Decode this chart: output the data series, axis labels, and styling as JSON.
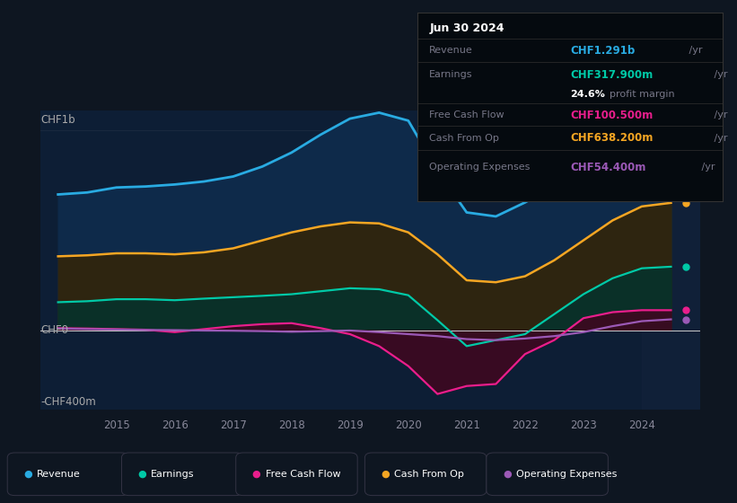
{
  "background_color": "#0e1621",
  "plot_bg_color": "#0d1e35",
  "ylabel_top": "CHF1b",
  "ylabel_mid": "CHF0",
  "ylabel_bot": "-CHF400m",
  "ylim": [
    -400,
    1100
  ],
  "xlim": [
    2013.7,
    2025.0
  ],
  "years": [
    2014.0,
    2014.5,
    2015.0,
    2015.5,
    2016.0,
    2016.5,
    2017.0,
    2017.5,
    2018.0,
    2018.5,
    2019.0,
    2019.5,
    2020.0,
    2020.5,
    2021.0,
    2021.5,
    2022.0,
    2022.5,
    2023.0,
    2023.5,
    2024.0,
    2024.5
  ],
  "revenue": [
    680,
    690,
    715,
    720,
    730,
    745,
    770,
    820,
    890,
    980,
    1060,
    1090,
    1050,
    800,
    590,
    570,
    640,
    720,
    870,
    1050,
    1200,
    1291
  ],
  "cash_from_op": [
    370,
    375,
    385,
    385,
    380,
    390,
    410,
    450,
    490,
    520,
    540,
    535,
    490,
    380,
    250,
    240,
    270,
    350,
    450,
    550,
    620,
    638
  ],
  "earnings": [
    140,
    145,
    155,
    155,
    150,
    158,
    165,
    172,
    180,
    195,
    210,
    205,
    175,
    50,
    -80,
    -50,
    -20,
    80,
    180,
    260,
    310,
    318
  ],
  "free_cash_flow": [
    10,
    8,
    5,
    2,
    -10,
    5,
    20,
    30,
    35,
    10,
    -20,
    -80,
    -180,
    -320,
    -280,
    -270,
    -120,
    -50,
    60,
    90,
    100,
    100
  ],
  "operating_expenses": [
    8,
    5,
    3,
    1,
    0,
    -2,
    -3,
    -5,
    -8,
    -5,
    -2,
    -10,
    -20,
    -30,
    -45,
    -50,
    -42,
    -30,
    -10,
    20,
    45,
    54
  ],
  "revenue_color": "#29abe2",
  "revenue_fill": "#0e2a4a",
  "cash_from_op_color": "#f5a623",
  "cash_from_op_fill": "#2e2510",
  "earnings_color": "#00c9a7",
  "earnings_fill": "#0a3028",
  "free_cash_flow_color": "#e91e8c",
  "free_cash_flow_fill": "#3d0820",
  "operating_expenses_color": "#9b59b6",
  "grid_color": "#1a2a3f",
  "zero_line_color": "#cccccc",
  "date_label": "Jun 30 2024",
  "box_bg": "#050a0f",
  "box_border": "#333333",
  "info_rows": [
    {
      "label": "Revenue",
      "value": "CHF1.291b",
      "unit": " /yr",
      "color": "#29abe2"
    },
    {
      "label": "Earnings",
      "value": "CHF317.900m",
      "unit": " /yr",
      "color": "#00c9a7"
    },
    {
      "label": "",
      "value": "24.6%",
      "unit": " profit margin",
      "color": "#ffffff"
    },
    {
      "label": "Free Cash Flow",
      "value": "CHF100.500m",
      "unit": " /yr",
      "color": "#e91e8c"
    },
    {
      "label": "Cash From Op",
      "value": "CHF638.200m",
      "unit": " /yr",
      "color": "#f5a623"
    },
    {
      "label": "Operating Expenses",
      "value": "CHF54.400m",
      "unit": " /yr",
      "color": "#9b59b6"
    }
  ],
  "legend_items": [
    {
      "label": "Revenue",
      "color": "#29abe2"
    },
    {
      "label": "Earnings",
      "color": "#00c9a7"
    },
    {
      "label": "Free Cash Flow",
      "color": "#e91e8c"
    },
    {
      "label": "Cash From Op",
      "color": "#f5a623"
    },
    {
      "label": "Operating Expenses",
      "color": "#9b59b6"
    }
  ],
  "dot_values": {
    "revenue": 1291,
    "cash_from_op": 638,
    "earnings": 318,
    "free_cash_flow": 100,
    "operating_expenses": 54
  }
}
